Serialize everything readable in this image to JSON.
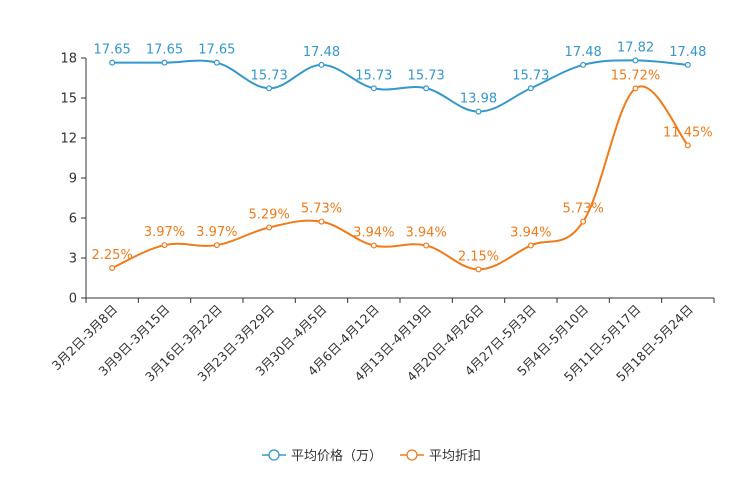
{
  "chart_data": {
    "type": "line",
    "categories": [
      "3月2日-3月8日",
      "3月9日-3月15日",
      "3月16日-3月22日",
      "3月23日-3月29日",
      "3月30日-4月5日",
      "4月6日-4月12日",
      "4月13日-4月19日",
      "4月20日-4月26日",
      "4月27日-5月3日",
      "5月4日-5月10日",
      "5月11日-5月17日",
      "5月18日-5月24日"
    ],
    "series": [
      {
        "name": "平均价格（万）",
        "color": "#3398cc",
        "values": [
          17.65,
          17.65,
          17.65,
          15.73,
          17.48,
          15.73,
          15.73,
          13.98,
          15.73,
          17.48,
          17.82,
          17.48
        ],
        "labels": [
          "17.65",
          "17.65",
          "17.65",
          "15.73",
          "17.48",
          "15.73",
          "15.73",
          "13.98",
          "15.73",
          "17.48",
          "17.82",
          "17.48"
        ]
      },
      {
        "name": "平均折扣",
        "color": "#f07b1a",
        "values": [
          2.25,
          3.97,
          3.97,
          5.29,
          5.73,
          3.94,
          3.94,
          2.15,
          3.94,
          5.73,
          15.72,
          11.45
        ],
        "labels": [
          "2.25%",
          "3.97%",
          "3.97%",
          "5.29%",
          "5.73%",
          "3.94%",
          "3.94%",
          "2.15%",
          "3.94%",
          "5.73%",
          "15.72%",
          "11.45%"
        ]
      }
    ],
    "y_ticks": [
      "0",
      "3",
      "6",
      "9",
      "12",
      "15",
      "18"
    ],
    "ylim": [
      0,
      18
    ],
    "grid": false,
    "legend": "bottom-center"
  }
}
